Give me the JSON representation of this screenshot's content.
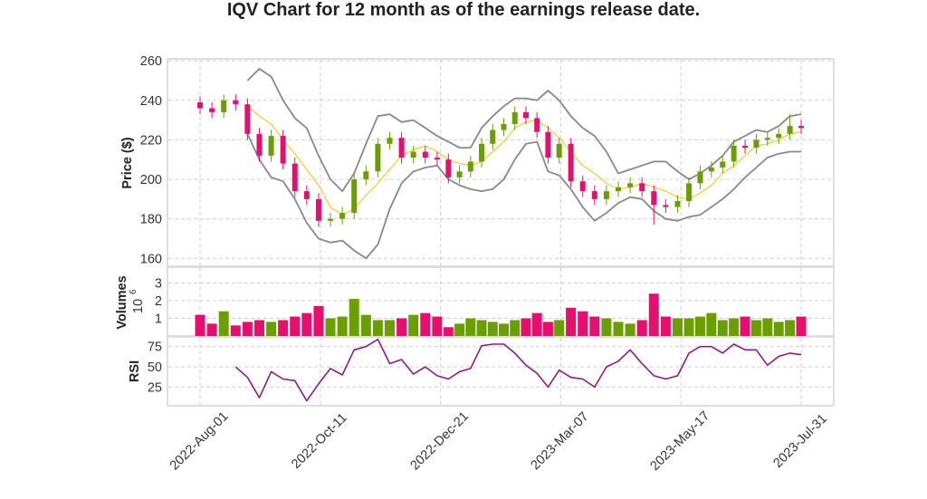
{
  "chart_data": {
    "type": "candlestick",
    "title": "IQV Chart for 12 month as of the earnings release date.",
    "colors": {
      "up": "#6b9e05",
      "down": "#e5106e",
      "bollinger_bands": "#888888",
      "moving_average": "#ffc52a",
      "rsi": "#8b1a8b",
      "grid": "#cfcfcf"
    },
    "grid": true,
    "x_ticks": [
      "2022-Aug-01",
      "2022-Oct-11",
      "2022-Dec-21",
      "2023-Mar-07",
      "2023-May-17",
      "2023-Jul-31"
    ],
    "dates": [
      "2022-08-01",
      "2022-08-08",
      "2022-08-15",
      "2022-08-22",
      "2022-08-29",
      "2022-09-05",
      "2022-09-12",
      "2022-09-19",
      "2022-09-26",
      "2022-10-03",
      "2022-10-10",
      "2022-10-17",
      "2022-10-24",
      "2022-10-31",
      "2022-11-07",
      "2022-11-14",
      "2022-11-21",
      "2022-11-28",
      "2022-12-05",
      "2022-12-12",
      "2022-12-19",
      "2022-12-26",
      "2023-01-02",
      "2023-01-09",
      "2023-01-16",
      "2023-01-23",
      "2023-01-30",
      "2023-02-06",
      "2023-02-13",
      "2023-02-20",
      "2023-02-27",
      "2023-03-06",
      "2023-03-13",
      "2023-03-20",
      "2023-03-27",
      "2023-04-03",
      "2023-04-10",
      "2023-04-17",
      "2023-04-24",
      "2023-05-01",
      "2023-05-08",
      "2023-05-15",
      "2023-05-22",
      "2023-05-29",
      "2023-06-05",
      "2023-06-12",
      "2023-06-19",
      "2023-06-26",
      "2023-07-03",
      "2023-07-10",
      "2023-07-17",
      "2023-07-24",
      "2023-07-31"
    ],
    "price_panel": {
      "ylabel": "Price ($)",
      "ylim": [
        156,
        261
      ],
      "y_ticks": [
        160,
        180,
        200,
        220,
        240,
        260
      ],
      "open": [
        239,
        236,
        234,
        240,
        238,
        223,
        212,
        222,
        208,
        194,
        190,
        179,
        180,
        183,
        200,
        204,
        218,
        221,
        211,
        214,
        211,
        210,
        201,
        204,
        209,
        218,
        225,
        228,
        234,
        231,
        224,
        211,
        218,
        199,
        194,
        190,
        194,
        196,
        198,
        194,
        187,
        186,
        189,
        198,
        204,
        206,
        209,
        217,
        216,
        220,
        221,
        223,
        227
      ],
      "high": [
        242,
        239,
        243,
        243,
        241,
        226,
        225,
        225,
        211,
        197,
        193,
        183,
        186,
        203,
        207,
        221,
        224,
        224,
        217,
        217,
        214,
        213,
        207,
        212,
        221,
        228,
        231,
        237,
        237,
        234,
        227,
        221,
        221,
        202,
        197,
        197,
        199,
        201,
        201,
        197,
        190,
        192,
        201,
        207,
        209,
        212,
        220,
        220,
        223,
        224,
        226,
        233,
        230
      ],
      "low": [
        233,
        231,
        231,
        235,
        220,
        209,
        209,
        205,
        191,
        187,
        176,
        176,
        177,
        180,
        197,
        201,
        215,
        208,
        208,
        208,
        207,
        198,
        198,
        201,
        206,
        215,
        222,
        225,
        228,
        221,
        208,
        208,
        196,
        191,
        187,
        187,
        191,
        193,
        191,
        177,
        183,
        183,
        186,
        195,
        201,
        203,
        206,
        213,
        213,
        217,
        218,
        220,
        223
      ],
      "close": [
        236,
        234,
        240,
        238,
        223,
        212,
        222,
        208,
        194,
        190,
        179,
        180,
        183,
        200,
        204,
        218,
        221,
        211,
        214,
        211,
        210,
        201,
        204,
        209,
        218,
        225,
        228,
        234,
        231,
        224,
        211,
        218,
        199,
        194,
        190,
        194,
        196,
        198,
        194,
        187,
        186,
        189,
        198,
        204,
        206,
        209,
        217,
        216,
        220,
        221,
        223,
        227,
        226
      ],
      "bollinger_upper": [
        null,
        null,
        null,
        null,
        250,
        256,
        252,
        240,
        231,
        226,
        212,
        200,
        194,
        203,
        218,
        232,
        233,
        229,
        230,
        226,
        222,
        219,
        216,
        216,
        226,
        232,
        237,
        241,
        241,
        240,
        245,
        240,
        232,
        226,
        222,
        214,
        203,
        205,
        207,
        209,
        209,
        204,
        200,
        203,
        207,
        212,
        219,
        222,
        225,
        224,
        227,
        232,
        233
      ],
      "bollinger_mid": [
        null,
        null,
        null,
        null,
        237,
        232,
        228,
        220,
        213,
        205,
        197,
        186,
        182,
        185,
        192,
        198,
        205,
        212,
        215,
        217,
        214,
        210,
        208,
        207,
        209,
        214,
        219,
        226,
        229,
        230,
        226,
        221,
        214,
        207,
        203,
        198,
        195,
        196,
        198,
        196,
        194,
        191,
        190,
        193,
        197,
        203,
        207,
        212,
        217,
        218,
        220,
        223,
        224
      ],
      "bollinger_lower": [
        null,
        null,
        null,
        null,
        223,
        210,
        201,
        199,
        190,
        178,
        170,
        168,
        169,
        164,
        160,
        167,
        185,
        198,
        204,
        206,
        207,
        200,
        197,
        195,
        194,
        195,
        200,
        210,
        218,
        219,
        204,
        202,
        195,
        186,
        179,
        183,
        188,
        191,
        190,
        184,
        180,
        179,
        181,
        182,
        186,
        190,
        195,
        201,
        206,
        211,
        213,
        214,
        214
      ]
    },
    "volume_panel": {
      "ylabel": "Volumes",
      "scale_label": "10",
      "scale_exp": "6",
      "ylim": [
        0,
        3.9
      ],
      "y_ticks": [
        1,
        2,
        3
      ],
      "values": [
        1.2,
        0.7,
        1.4,
        0.6,
        0.8,
        0.9,
        0.8,
        0.9,
        1.1,
        1.3,
        1.7,
        1.0,
        1.1,
        2.1,
        1.2,
        0.9,
        0.9,
        1.0,
        1.2,
        1.3,
        1.1,
        0.5,
        0.7,
        1.0,
        0.9,
        0.8,
        0.7,
        0.9,
        1.0,
        1.3,
        0.8,
        0.9,
        1.6,
        1.4,
        1.1,
        1.0,
        0.8,
        0.7,
        0.9,
        2.4,
        1.1,
        1.0,
        1.0,
        1.1,
        1.3,
        0.9,
        1.0,
        1.1,
        0.9,
        1.0,
        0.8,
        0.9,
        1.1
      ]
    },
    "rsi_panel": {
      "ylabel": "RSI",
      "ylim": [
        2,
        87
      ],
      "y_ticks": [
        25,
        50,
        75
      ],
      "values": [
        null,
        null,
        null,
        50,
        37,
        12,
        44,
        35,
        33,
        8,
        29,
        48,
        40,
        71,
        75,
        84,
        54,
        59,
        41,
        50,
        39,
        35,
        44,
        48,
        76,
        78,
        78,
        67,
        52,
        42,
        25,
        46,
        37,
        35,
        25,
        50,
        57,
        71,
        54,
        39,
        35,
        39,
        67,
        75,
        75,
        67,
        78,
        71,
        71,
        52,
        63,
        67,
        65
      ]
    }
  }
}
